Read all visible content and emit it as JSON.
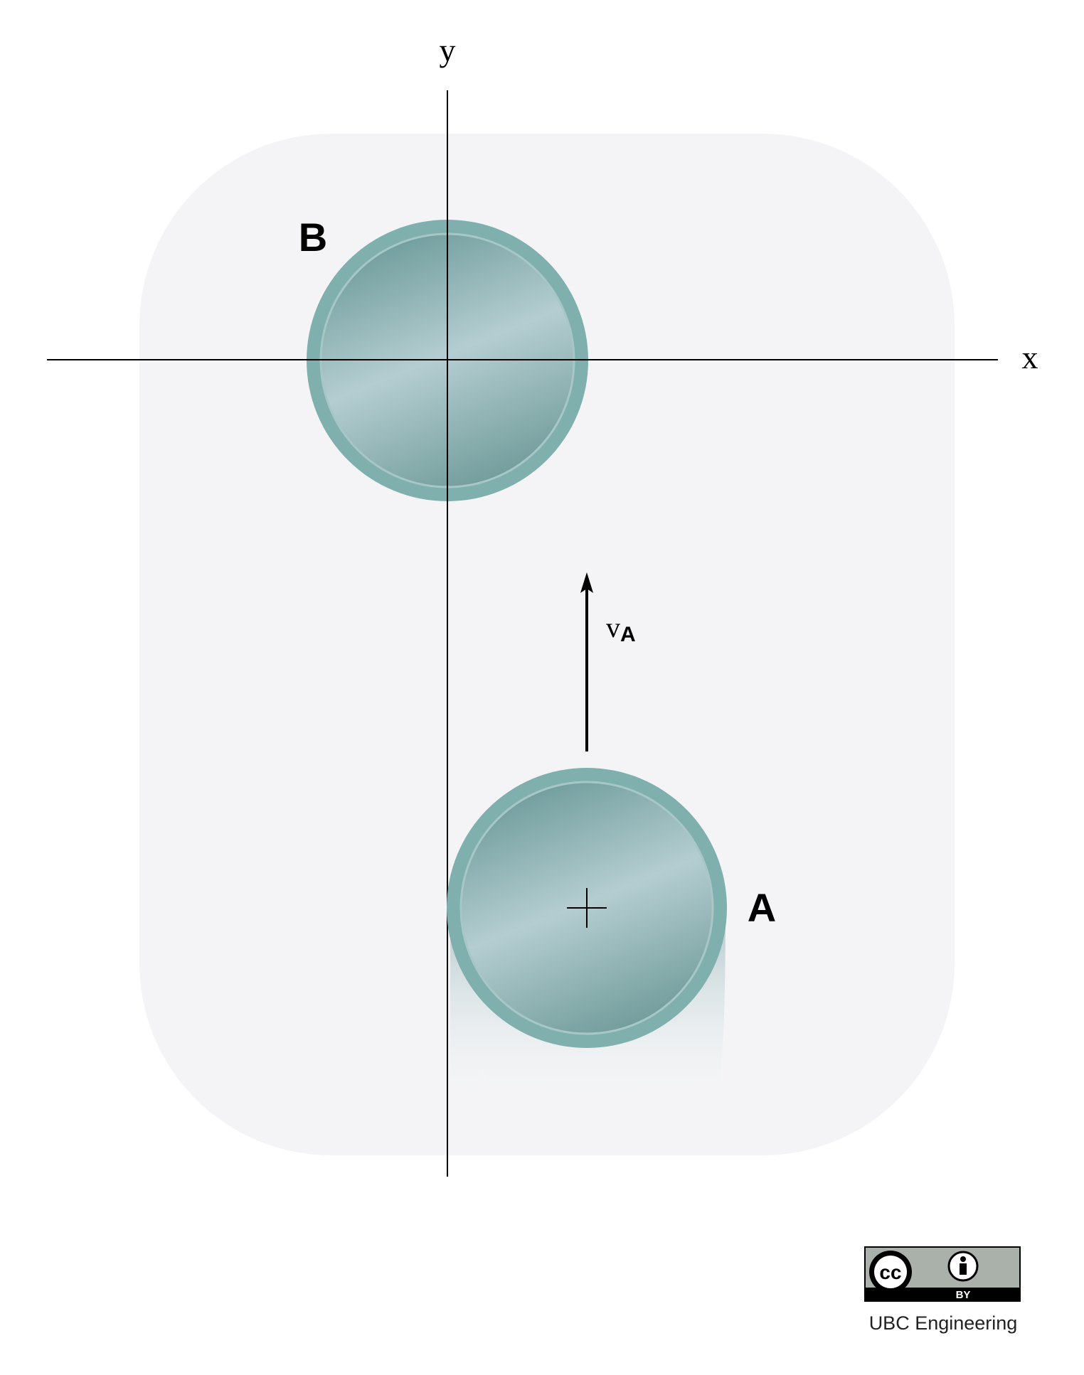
{
  "axes": {
    "x_label": "x",
    "y_label": "y"
  },
  "discs": {
    "b": {
      "label": "B"
    },
    "a": {
      "label": "A"
    }
  },
  "velocity": {
    "symbol": "v",
    "subscript": "A"
  },
  "license": {
    "cc_text": "cc",
    "by_text": "BY",
    "credit": "UBC Engineering"
  },
  "colors": {
    "background_panel": "#f4f4f6",
    "disc_rim": "#7fb0ae",
    "disc_face_dark": "#6f9c9c",
    "disc_face_light": "#b4cdd0",
    "license_badge": "#aab0aa"
  }
}
